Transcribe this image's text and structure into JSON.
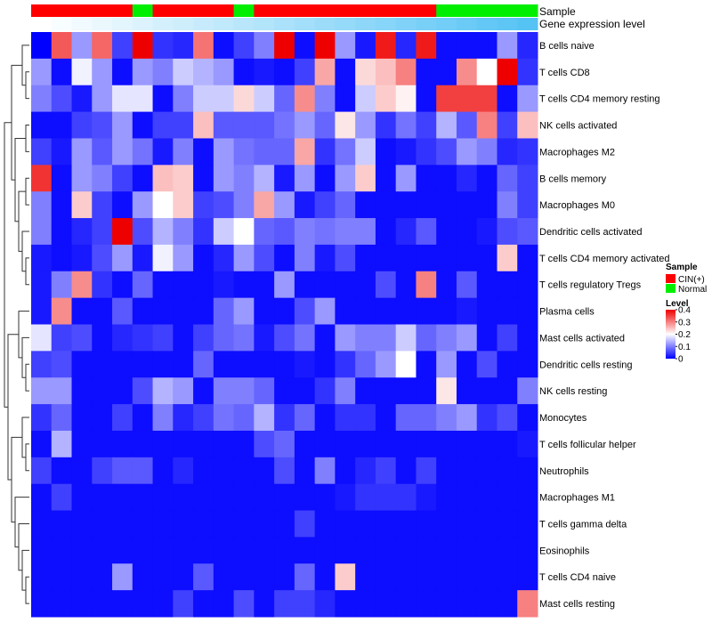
{
  "chart_data": {
    "type": "heatmap",
    "title": "",
    "columns": 25,
    "rows": [
      "B cells naive",
      "T cells CD8",
      "T cells CD4 memory resting",
      "NK cells activated",
      "Macrophages M2",
      "B cells memory",
      "Macrophages M0",
      "Dendritic cells activated",
      "T cells CD4 memory activated",
      "T cells regulatory  Tregs",
      "Plasma cells",
      "Mast cells activated",
      "Dendritic cells resting",
      "NK cells resting",
      "Monocytes",
      "T cells follicular helper",
      "Neutrophils",
      "Macrophages M1",
      "T cells gamma delta",
      "Eosinophils",
      "T cells CD4 naive",
      "Mast cells resting"
    ],
    "values": [
      [
        0.0,
        0.33,
        0.12,
        0.32,
        0.05,
        0.4,
        0.04,
        0.03,
        0.31,
        0.01,
        0.05,
        0.1,
        0.4,
        0.01,
        0.4,
        0.12,
        0.02,
        0.38,
        0.03,
        0.38,
        0.01,
        0.01,
        0.01,
        0.12,
        0.03
      ],
      [
        0.12,
        0.01,
        0.19,
        0.12,
        0.01,
        0.12,
        0.1,
        0.16,
        0.14,
        0.12,
        0.01,
        0.02,
        0.01,
        0.05,
        0.27,
        0.01,
        0.23,
        0.25,
        0.3,
        0.01,
        0.01,
        0.29,
        0.2,
        0.4,
        0.04
      ],
      [
        0.1,
        0.06,
        0.02,
        0.12,
        0.18,
        0.18,
        0.01,
        0.1,
        0.16,
        0.16,
        0.23,
        0.16,
        0.08,
        0.29,
        0.1,
        0.01,
        0.16,
        0.24,
        0.21,
        0.01,
        0.35,
        0.35,
        0.35,
        0.01,
        0.12
      ],
      [
        0.01,
        0.01,
        0.05,
        0.06,
        0.12,
        0.01,
        0.05,
        0.05,
        0.25,
        0.07,
        0.07,
        0.07,
        0.09,
        0.12,
        0.08,
        0.22,
        0.12,
        0.04,
        0.09,
        0.05,
        0.14,
        0.07,
        0.3,
        0.05,
        0.25
      ],
      [
        0.05,
        0.02,
        0.12,
        0.07,
        0.12,
        0.09,
        0.02,
        0.1,
        0.01,
        0.12,
        0.09,
        0.08,
        0.08,
        0.27,
        0.04,
        0.09,
        0.16,
        0.01,
        0.02,
        0.04,
        0.06,
        0.12,
        0.1,
        0.03,
        0.04
      ],
      [
        0.36,
        0.01,
        0.12,
        0.1,
        0.05,
        0.01,
        0.25,
        0.24,
        0.01,
        0.12,
        0.1,
        0.14,
        0.02,
        0.12,
        0.01,
        0.12,
        0.24,
        0.01,
        0.12,
        0.01,
        0.01,
        0.03,
        0.01,
        0.08,
        0.05
      ],
      [
        0.1,
        0.01,
        0.24,
        0.05,
        0.01,
        0.12,
        0.2,
        0.24,
        0.05,
        0.06,
        0.1,
        0.27,
        0.12,
        0.02,
        0.05,
        0.08,
        0.01,
        0.01,
        0.01,
        0.01,
        0.01,
        0.01,
        0.01,
        0.1,
        0.05
      ],
      [
        0.1,
        0.01,
        0.03,
        0.05,
        0.4,
        0.06,
        0.14,
        0.1,
        0.04,
        0.16,
        0.2,
        0.08,
        0.07,
        0.1,
        0.09,
        0.1,
        0.1,
        0.01,
        0.03,
        0.07,
        0.01,
        0.01,
        0.02,
        0.06,
        0.07
      ],
      [
        0.02,
        0.01,
        0.02,
        0.06,
        0.12,
        0.02,
        0.19,
        0.12,
        0.01,
        0.03,
        0.12,
        0.06,
        0.01,
        0.1,
        0.02,
        0.06,
        0.01,
        0.01,
        0.01,
        0.01,
        0.01,
        0.01,
        0.01,
        0.24,
        0.01
      ],
      [
        0.02,
        0.1,
        0.29,
        0.04,
        0.01,
        0.08,
        0.01,
        0.01,
        0.01,
        0.02,
        0.01,
        0.01,
        0.12,
        0.01,
        0.01,
        0.01,
        0.01,
        0.06,
        0.01,
        0.3,
        0.01,
        0.07,
        0.01,
        0.01,
        0.01
      ],
      [
        0.02,
        0.29,
        0.01,
        0.01,
        0.07,
        0.01,
        0.01,
        0.01,
        0.01,
        0.08,
        0.12,
        0.01,
        0.01,
        0.06,
        0.12,
        0.01,
        0.01,
        0.01,
        0.01,
        0.01,
        0.01,
        0.02,
        0.01,
        0.01,
        0.01
      ],
      [
        0.18,
        0.05,
        0.06,
        0.01,
        0.03,
        0.04,
        0.05,
        0.01,
        0.05,
        0.08,
        0.09,
        0.02,
        0.06,
        0.09,
        0.01,
        0.12,
        0.1,
        0.1,
        0.16,
        0.08,
        0.1,
        0.12,
        0.01,
        0.05,
        0.01
      ],
      [
        0.05,
        0.06,
        0.01,
        0.01,
        0.01,
        0.01,
        0.01,
        0.01,
        0.08,
        0.01,
        0.01,
        0.01,
        0.01,
        0.02,
        0.01,
        0.04,
        0.08,
        0.12,
        0.2,
        0.01,
        0.12,
        0.01,
        0.06,
        0.01,
        0.01
      ],
      [
        0.12,
        0.12,
        0.01,
        0.01,
        0.01,
        0.06,
        0.14,
        0.12,
        0.01,
        0.1,
        0.1,
        0.08,
        0.01,
        0.01,
        0.04,
        0.1,
        0.01,
        0.01,
        0.01,
        0.01,
        0.22,
        0.01,
        0.01,
        0.01,
        0.1
      ],
      [
        0.04,
        0.08,
        0.01,
        0.01,
        0.05,
        0.01,
        0.1,
        0.03,
        0.05,
        0.09,
        0.08,
        0.14,
        0.04,
        0.08,
        0.01,
        0.04,
        0.04,
        0.01,
        0.08,
        0.08,
        0.1,
        0.12,
        0.04,
        0.06,
        0.01
      ],
      [
        0.01,
        0.14,
        0.01,
        0.01,
        0.01,
        0.01,
        0.01,
        0.01,
        0.01,
        0.01,
        0.01,
        0.06,
        0.08,
        0.01,
        0.01,
        0.01,
        0.01,
        0.01,
        0.01,
        0.01,
        0.01,
        0.01,
        0.01,
        0.01,
        0.02
      ],
      [
        0.05,
        0.01,
        0.01,
        0.05,
        0.07,
        0.07,
        0.01,
        0.03,
        0.01,
        0.01,
        0.01,
        0.01,
        0.06,
        0.01,
        0.1,
        0.01,
        0.03,
        0.05,
        0.01,
        0.05,
        0.01,
        0.01,
        0.01,
        0.01,
        0.01
      ],
      [
        0.01,
        0.05,
        0.01,
        0.01,
        0.01,
        0.01,
        0.01,
        0.01,
        0.01,
        0.01,
        0.01,
        0.01,
        0.01,
        0.01,
        0.01,
        0.02,
        0.04,
        0.04,
        0.04,
        0.02,
        0.01,
        0.01,
        0.01,
        0.01,
        0.01
      ],
      [
        0.01,
        0.01,
        0.01,
        0.01,
        0.01,
        0.01,
        0.01,
        0.01,
        0.01,
        0.01,
        0.01,
        0.01,
        0.01,
        0.05,
        0.01,
        0.01,
        0.01,
        0.01,
        0.01,
        0.01,
        0.01,
        0.01,
        0.01,
        0.01,
        0.01
      ],
      [
        0.01,
        0.01,
        0.01,
        0.01,
        0.01,
        0.01,
        0.01,
        0.01,
        0.01,
        0.01,
        0.01,
        0.01,
        0.01,
        0.01,
        0.01,
        0.01,
        0.01,
        0.01,
        0.01,
        0.01,
        0.01,
        0.01,
        0.01,
        0.01,
        0.01
      ],
      [
        0.01,
        0.01,
        0.01,
        0.01,
        0.12,
        0.01,
        0.01,
        0.01,
        0.07,
        0.01,
        0.01,
        0.01,
        0.01,
        0.08,
        0.01,
        0.24,
        0.01,
        0.01,
        0.01,
        0.01,
        0.01,
        0.01,
        0.01,
        0.01,
        0.01
      ],
      [
        0.01,
        0.01,
        0.01,
        0.01,
        0.01,
        0.01,
        0.01,
        0.05,
        0.01,
        0.01,
        0.06,
        0.01,
        0.05,
        0.05,
        0.03,
        0.01,
        0.01,
        0.01,
        0.01,
        0.01,
        0.01,
        0.01,
        0.01,
        0.01,
        0.3
      ]
    ],
    "sample_annotation": {
      "label": "Sample",
      "values": [
        "CIN(+)",
        "CIN(+)",
        "CIN(+)",
        "CIN(+)",
        "CIN(+)",
        "Normal",
        "CIN(+)",
        "CIN(+)",
        "CIN(+)",
        "CIN(+)",
        "Normal",
        "CIN(+)",
        "CIN(+)",
        "CIN(+)",
        "CIN(+)",
        "CIN(+)",
        "CIN(+)",
        "CIN(+)",
        "CIN(+)",
        "CIN(+)",
        "Normal",
        "Normal",
        "Normal",
        "Normal",
        "Normal"
      ]
    },
    "expression_annotation": {
      "label": "Gene expression level",
      "from_color": "#FFFFFF",
      "to_color": "#56C3F5"
    },
    "legend": {
      "position": "right",
      "sample": {
        "title": "Sample",
        "entries": [
          {
            "label": "CIN(+)",
            "color": "#FF0000"
          },
          {
            "label": "Normal",
            "color": "#00EE00"
          }
        ]
      },
      "level": {
        "title": "Level",
        "ticks": [
          0,
          0.1,
          0.2,
          0.3,
          0.4
        ],
        "tick_labels": [
          "0",
          "0.1",
          "0.2",
          "0.3",
          "0.4"
        ]
      }
    },
    "color_scale": {
      "low": "#0000FF",
      "mid": "#FFFFFF",
      "high": "#EE0000",
      "min": 0,
      "mid_value": 0.2,
      "max": 0.4
    },
    "dendrogram": "rows"
  }
}
